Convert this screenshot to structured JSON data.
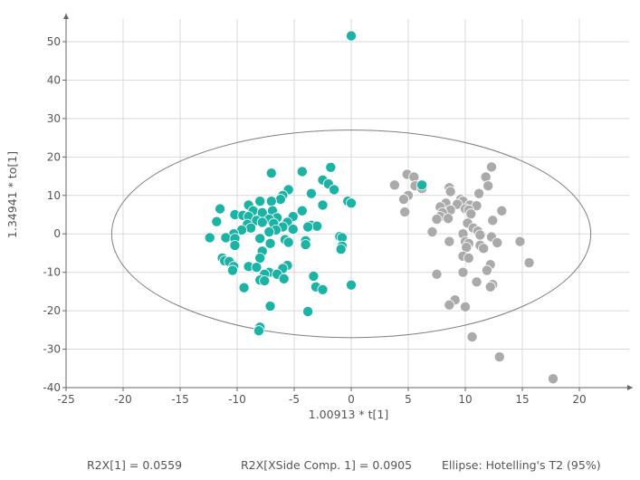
{
  "chart_data": {
    "type": "scatter",
    "xlabel": "1.00913 * t[1]",
    "ylabel": "1.34941 * to[1]",
    "xlim": [
      -25,
      25
    ],
    "ylim": [
      -40,
      55
    ],
    "x_ticks": [
      -25,
      -20,
      -15,
      -10,
      -5,
      0,
      5,
      10,
      15,
      20
    ],
    "y_ticks": [
      -40,
      -30,
      -20,
      -10,
      0,
      10,
      20,
      30,
      40,
      50
    ],
    "grid": true,
    "ellipse": {
      "label": "Ellipse: Hotelling's T2 (95%)",
      "center": [
        0,
        0
      ],
      "x_radius": 21,
      "y_radius": 27,
      "color": "#7f7f7f"
    },
    "series": [
      {
        "color": "#1bb3a5",
        "points": [
          [
            0,
            51.5
          ],
          [
            -1.8,
            17.3
          ],
          [
            -4.3,
            16.2
          ],
          [
            -7,
            15.8
          ],
          [
            -2.5,
            14
          ],
          [
            -2,
            13
          ],
          [
            -1.5,
            11.5
          ],
          [
            -5.5,
            11.5
          ],
          [
            -3.5,
            10.5
          ],
          [
            -6,
            10
          ],
          [
            -8,
            8.5
          ],
          [
            -6.2,
            9
          ],
          [
            -7,
            8.5
          ],
          [
            -2.5,
            7.5
          ],
          [
            -0.3,
            8.5
          ],
          [
            0,
            8
          ],
          [
            -9,
            7.5
          ],
          [
            -11.5,
            6.5
          ],
          [
            -4.3,
            6
          ],
          [
            -8.6,
            6
          ],
          [
            -6.9,
            6
          ],
          [
            -7.8,
            5.5
          ],
          [
            -10.2,
            5
          ],
          [
            -9.5,
            4.8
          ],
          [
            -9,
            4.5
          ],
          [
            -5.1,
            4.5
          ],
          [
            -6.5,
            4.2
          ],
          [
            -7.2,
            3.8
          ],
          [
            -8.3,
            3.5
          ],
          [
            -11.8,
            3.2
          ],
          [
            -5.6,
            3
          ],
          [
            -7.8,
            3
          ],
          [
            -6.8,
            2.7
          ],
          [
            -9.1,
            2.5
          ],
          [
            -3.5,
            2.2
          ],
          [
            -3,
            2
          ],
          [
            -3.8,
            1.8
          ],
          [
            -6,
            1.8
          ],
          [
            -8.8,
            1.5
          ],
          [
            -5.1,
            1.2
          ],
          [
            -6.6,
            1
          ],
          [
            -9.6,
            1
          ],
          [
            -7.2,
            0.5
          ],
          [
            -10.3,
            0
          ],
          [
            -12.4,
            -1
          ],
          [
            -11,
            -1
          ],
          [
            -10.2,
            -1.2
          ],
          [
            -8,
            -1.2
          ],
          [
            -5.8,
            -1.5
          ],
          [
            -1,
            -0.7
          ],
          [
            -0.8,
            -1
          ],
          [
            -4,
            -1.8
          ],
          [
            -7.1,
            -2.5
          ],
          [
            -5.5,
            -2.2
          ],
          [
            -4,
            -2.8
          ],
          [
            -0.8,
            -3.2
          ],
          [
            -10.2,
            -3
          ],
          [
            -0.9,
            -4
          ],
          [
            -7.8,
            -4.5
          ],
          [
            -11.3,
            -6.3
          ],
          [
            -8,
            -6.3
          ],
          [
            -11.1,
            -7
          ],
          [
            -10.7,
            -7.2
          ],
          [
            -10.3,
            -8.5
          ],
          [
            -9,
            -8.5
          ],
          [
            -8.3,
            -8.7
          ],
          [
            -5.6,
            -8.2
          ],
          [
            -6,
            -9
          ],
          [
            -10.4,
            -9.5
          ],
          [
            -7.2,
            -10
          ],
          [
            -7.6,
            -10.5
          ],
          [
            -6.5,
            -10.5
          ],
          [
            -3.3,
            -11
          ],
          [
            -5.9,
            -11.7
          ],
          [
            -8,
            -12
          ],
          [
            -7.6,
            -12.2
          ],
          [
            -9.4,
            -14
          ],
          [
            -3.1,
            -13.8
          ],
          [
            -2.5,
            -14.5
          ],
          [
            0,
            -13.3
          ],
          [
            -7.1,
            -18.8
          ],
          [
            -3.8,
            -20.2
          ],
          [
            -8,
            -24.3
          ],
          [
            -8.1,
            -25.2
          ],
          [
            6.2,
            12.7
          ]
        ]
      },
      {
        "color": "#aaaaaa",
        "points": [
          [
            4.9,
            15.5
          ],
          [
            5.5,
            14.8
          ],
          [
            3.8,
            12.7
          ],
          [
            5.6,
            12.5
          ],
          [
            6.2,
            11.8
          ],
          [
            8.6,
            12
          ],
          [
            12.3,
            17.4
          ],
          [
            11.8,
            14.8
          ],
          [
            12,
            12.5
          ],
          [
            8.7,
            11
          ],
          [
            11.2,
            10.5
          ],
          [
            5,
            10
          ],
          [
            4.6,
            9
          ],
          [
            9.6,
            9
          ],
          [
            9.8,
            8.5
          ],
          [
            8.3,
            8
          ],
          [
            9.3,
            7.7
          ],
          [
            10.4,
            7.5
          ],
          [
            11,
            7.3
          ],
          [
            7.8,
            7
          ],
          [
            10,
            6.5
          ],
          [
            8.7,
            6.2
          ],
          [
            10.3,
            6.2
          ],
          [
            13.2,
            6
          ],
          [
            4.7,
            5.7
          ],
          [
            8,
            5.5
          ],
          [
            10.5,
            5.2
          ],
          [
            7.8,
            4.5
          ],
          [
            7.5,
            3.8
          ],
          [
            8.5,
            4
          ],
          [
            12.4,
            3.5
          ],
          [
            10.2,
            2.8
          ],
          [
            10.7,
            1.5
          ],
          [
            11.1,
            0.7
          ],
          [
            11.3,
            -0.3
          ],
          [
            7.1,
            0.5
          ],
          [
            9.8,
            0
          ],
          [
            12.3,
            -0.8
          ],
          [
            14.8,
            -2
          ],
          [
            10,
            -2
          ],
          [
            8.6,
            -2
          ],
          [
            10.3,
            -2.5
          ],
          [
            11.3,
            -3
          ],
          [
            12.8,
            -2.3
          ],
          [
            10.1,
            -3.5
          ],
          [
            11.6,
            -3.8
          ],
          [
            9.8,
            -5.8
          ],
          [
            10.3,
            -6.3
          ],
          [
            15.6,
            -7.5
          ],
          [
            12.2,
            -8
          ],
          [
            9.8,
            -10
          ],
          [
            7.5,
            -10.5
          ],
          [
            11.9,
            -9.5
          ],
          [
            11,
            -12.5
          ],
          [
            12.4,
            -13.2
          ],
          [
            12.2,
            -13.8
          ],
          [
            9.1,
            -17.2
          ],
          [
            8.6,
            -18.5
          ],
          [
            10,
            -19
          ],
          [
            10.6,
            -26.8
          ],
          [
            13,
            -32
          ],
          [
            17.7,
            -37.7
          ]
        ]
      }
    ]
  },
  "footer": {
    "r2x_t": "R2X[1] = 0.0559",
    "r2x_xside": "R2X[XSide Comp. 1] = 0.0905",
    "ellipse_label": "Ellipse: Hotelling's T2 (95%)"
  }
}
